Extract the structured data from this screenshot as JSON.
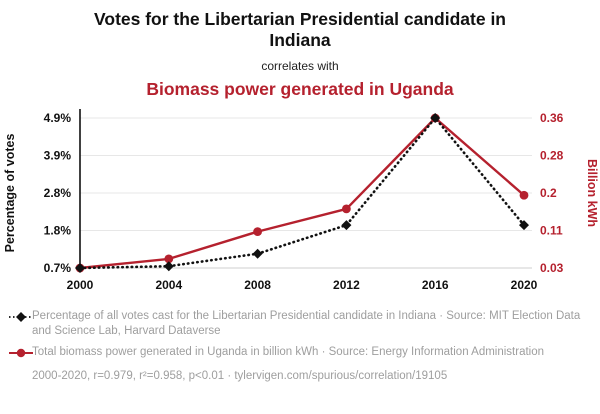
{
  "header": {
    "title": "Votes for the Libertarian Presidential candidate in Indiana",
    "connector": "correlates with",
    "subtitle": "Biomass power generated in Uganda"
  },
  "theme": {
    "accent_red": "#b5212e",
    "ink_black": "#111111",
    "muted_gray": "#9e9e9e",
    "gridline_gray": "#e7e7e7"
  },
  "chart_data": {
    "type": "line",
    "x_ticks": [
      "2000",
      "2004",
      "2008",
      "2012",
      "2016",
      "2020"
    ],
    "left_axis": {
      "label": "Percentage of votes",
      "ticks": [
        "0.7%",
        "1.8%",
        "2.8%",
        "3.9%",
        "4.9%"
      ],
      "min": 0.7,
      "max": 4.9
    },
    "right_axis": {
      "label": "Billion kWh",
      "ticks": [
        "0.03",
        "0.11",
        "0.2",
        "0.28",
        "0.36"
      ],
      "min": 0.03,
      "max": 0.36
    },
    "series": [
      {
        "name": "Percentage of all votes cast for the Libertarian Presidential candidate in Indiana",
        "axis": "left",
        "color": "#111111",
        "style": "dotted",
        "marker": "diamond",
        "values": [
          0.7,
          0.75,
          1.1,
          1.9,
          4.9,
          1.9
        ]
      },
      {
        "name": "Total biomass power generated in Uganda in billion kWh",
        "axis": "right",
        "color": "#b5212e",
        "style": "solid",
        "marker": "circle",
        "values": [
          0.03,
          0.05,
          0.11,
          0.16,
          0.36,
          0.19
        ]
      }
    ],
    "grid": "horizontal",
    "legend_position": "bottom"
  },
  "legend": [
    {
      "text": "Percentage of all votes cast for the Libertarian Presidential candidate in Indiana · Source: MIT Election Data and Science Lab, Harvard Dataverse"
    },
    {
      "text": "Total biomass power generated in Uganda in billion kWh · Source: Energy Information Administration"
    }
  ],
  "footer": "2000-2020, r=0.979, r²=0.958, p<0.01 · tylervigen.com/spurious/correlation/19105"
}
